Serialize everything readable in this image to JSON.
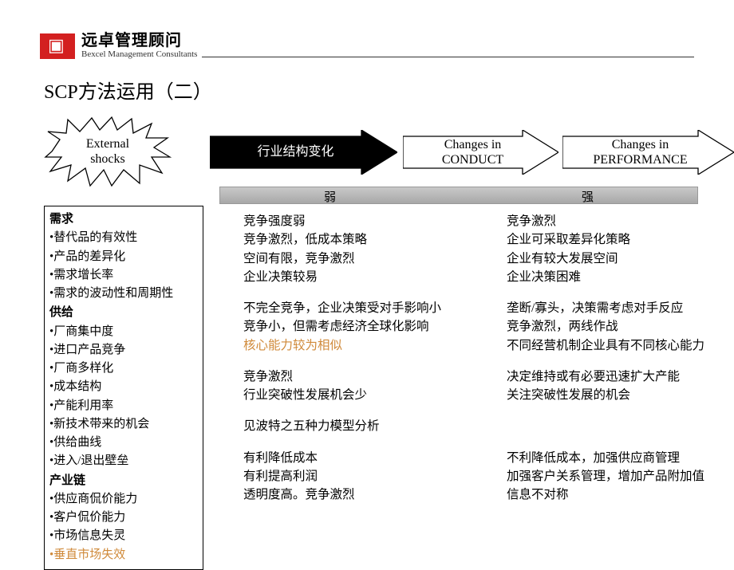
{
  "header": {
    "logo_cn": "远卓管理顾问",
    "logo_en": "Bexcel Management Consultants"
  },
  "title": "SCP方法运用（二）",
  "flow": {
    "starburst": "External\nshocks",
    "arrow1": "行业结构变化",
    "arrow2": "Changes in\nCONDUCT",
    "arrow3": "Changes in\nPERFORMANCE",
    "arrow1_fill": "#000000",
    "arrow1_text": "#ffffff",
    "arrow_border": "#000000"
  },
  "strength_bar": {
    "left": "弱",
    "right": "强"
  },
  "left_panel": {
    "sections": [
      {
        "head": "需求",
        "items": [
          "替代品的有效性",
          "产品的差异化",
          "需求增长率",
          "需求的波动性和周期性"
        ]
      },
      {
        "head": "供给",
        "items": [
          "厂商集中度",
          "进口产品竞争",
          "厂商多样化",
          "成本结构",
          "产能利用率",
          "新技术带来的机会",
          "供给曲线",
          "进入/退出壁垒"
        ]
      },
      {
        "head": "产业链",
        "items": [
          "供应商侃价能力",
          "客户侃价能力",
          "市场信息失灵"
        ],
        "highlight_item": "垂直市场失效"
      }
    ]
  },
  "weak_groups": [
    [
      "竞争强度弱",
      "竞争激烈，低成本策略",
      "空间有限，竞争激烈",
      "企业决策较易"
    ],
    [
      "不完全竞争，企业决策受对手影响小",
      "竞争小，但需考虑经济全球化影响",
      {
        "text": "核心能力较为相似",
        "hl": true
      }
    ],
    [
      "竞争激烈",
      "行业突破性发展机会少"
    ],
    [
      "见波特之五种力模型分析"
    ],
    [
      "有利降低成本",
      "有利提高利润",
      "透明度高。竞争激烈"
    ]
  ],
  "strong_groups": [
    [
      "竞争激烈",
      "企业可采取差异化策略",
      "企业有较大发展空间",
      "企业决策困难"
    ],
    [
      "垄断/寡头，决策需考虑对手反应",
      "竞争激烈，两线作战",
      "不同经营机制企业具有不同核心能力"
    ],
    [
      "决定维持或有必要迅速扩大产能",
      "关注突破性发展的机会"
    ],
    [
      ""
    ],
    [
      "不利降低成本，加强供应商管理",
      "加强客户关系管理，增加产品附加值",
      "信息不对称"
    ]
  ],
  "colors": {
    "highlight": "#d08a3a",
    "brand_red": "#d32020"
  }
}
